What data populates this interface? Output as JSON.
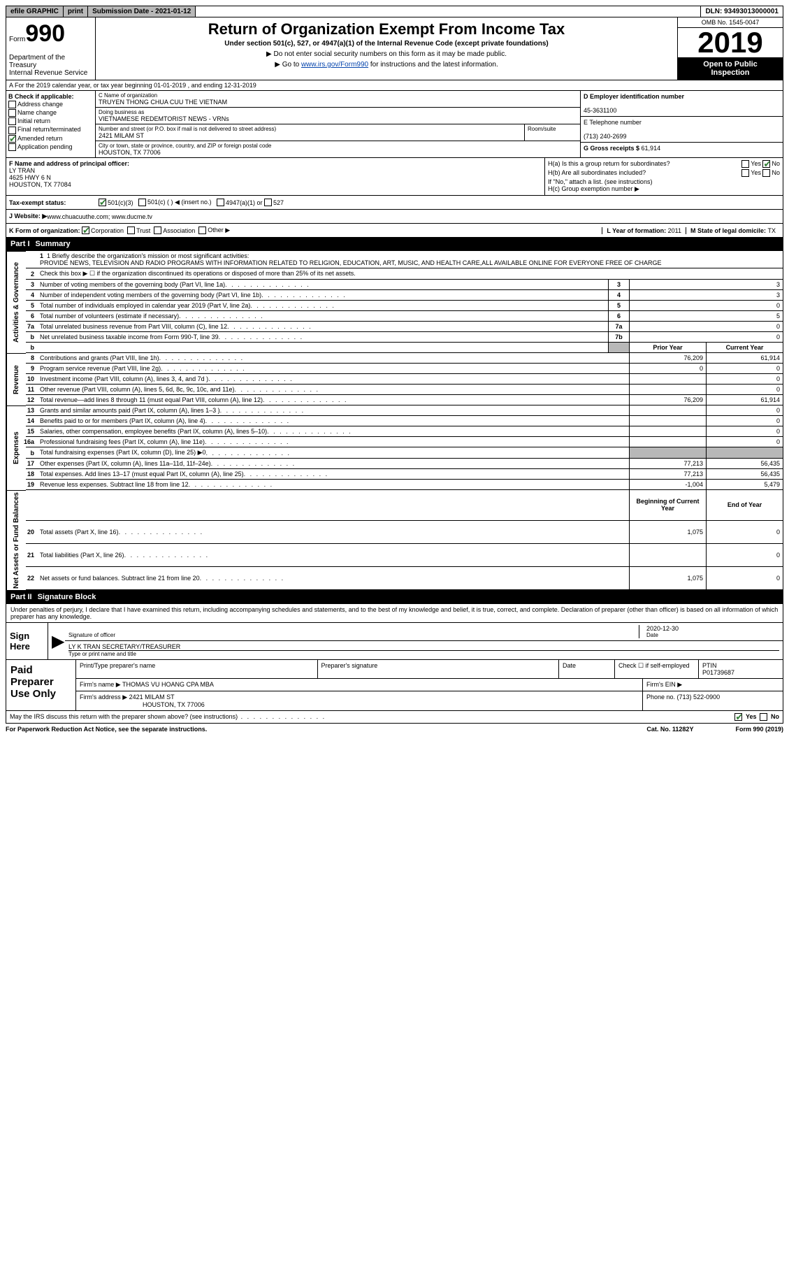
{
  "topbar": {
    "efile": "efile GRAPHIC",
    "print": "print",
    "subdate_label": "Submission Date - ",
    "subdate": "2021-01-12",
    "dln_label": "DLN: ",
    "dln": "93493013000001"
  },
  "header": {
    "form_word": "Form",
    "form_num": "990",
    "dept1": "Department of the Treasury",
    "dept2": "Internal Revenue Service",
    "title": "Return of Organization Exempt From Income Tax",
    "sub": "Under section 501(c), 527, or 4947(a)(1) of the Internal Revenue Code (except private foundations)",
    "note1": "▶ Do not enter social security numbers on this form as it may be made public.",
    "note2_pre": "▶ Go to ",
    "note2_link": "www.irs.gov/Form990",
    "note2_post": " for instructions and the latest information.",
    "omb": "OMB No. 1545-0047",
    "year": "2019",
    "inspect1": "Open to Public",
    "inspect2": "Inspection"
  },
  "rowA": "A For the 2019 calendar year, or tax year beginning 01-01-2019    , and ending 12-31-2019",
  "colB": {
    "hdr": "B Check if applicable:",
    "c1": "Address change",
    "c2": "Name change",
    "c3": "Initial return",
    "c4": "Final return/terminated",
    "c5": "Amended return",
    "c6": "Application pending"
  },
  "colC": {
    "name_lbl": "C Name of organization",
    "name": "TRUYEN THONG CHUA CUU THE VIETNAM",
    "dba_lbl": "Doing business as",
    "dba": "VIETNAMESE REDEMTORIST NEWS - VRNs",
    "addr_lbl": "Number and street (or P.O. box if mail is not delivered to street address)",
    "addr": "2421 MILAM ST",
    "room_lbl": "Room/suite",
    "city_lbl": "City or town, state or province, country, and ZIP or foreign postal code",
    "city": "HOUSTON, TX  77006"
  },
  "colD": {
    "lbl": "D Employer identification number",
    "val": "45-3631100"
  },
  "colE": {
    "lbl": "E Telephone number",
    "val": "(713) 240-2699"
  },
  "colG": {
    "lbl": "G Gross receipts $ ",
    "val": "61,914"
  },
  "colF": {
    "lbl": "F Name and address of principal officer:",
    "name": "LY TRAN",
    "addr1": "4625 HWY 6 N",
    "addr2": "HOUSTON, TX  77084"
  },
  "colH": {
    "ha": "H(a)  Is this a group return for subordinates?",
    "hb": "H(b)  Are all subordinates included?",
    "hb_note": "If \"No,\" attach a list. (see instructions)",
    "hc": "H(c)  Group exemption number ▶",
    "yes": "Yes",
    "no": "No"
  },
  "taxrow": {
    "lbl": "Tax-exempt status:",
    "o1": "501(c)(3)",
    "o2": "501(c) (  ) ◀ (insert no.)",
    "o3": "4947(a)(1) or",
    "o4": "527"
  },
  "webrow": {
    "lbl": "J   Website: ▶",
    "val": " www.chuacuuthe.com; www.ducme.tv"
  },
  "krow": {
    "lbl": "K Form of organization:",
    "o1": "Corporation",
    "o2": "Trust",
    "o3": "Association",
    "o4": "Other ▶",
    "l_lbl": "L Year of formation: ",
    "l_val": "2011",
    "m_lbl": "M State of legal domicile: ",
    "m_val": "TX"
  },
  "part1": {
    "hdr": "Part I",
    "title": "Summary",
    "side_act": "Activities & Governance",
    "side_rev": "Revenue",
    "side_exp": "Expenses",
    "side_net": "Net Assets or Fund Balances",
    "l1_lbl": "1   Briefly describe the organization's mission or most significant activities:",
    "l1_text": "PROVIDE NEWS, TELEVISION AND RADIO PROGRAMS WITH INFORMATION RELATED TO RELIGION, EDUCATION, ART, MUSIC, AND HEALTH CARE,ALL AVAILABLE ONLINE FOR EVERYONE FREE OF CHARGE",
    "l2": "Check this box ▶ ☐  if the organization discontinued its operations or disposed of more than 25% of its net assets.",
    "col_prior": "Prior Year",
    "col_curr": "Current Year",
    "col_beg": "Beginning of Current Year",
    "col_end": "End of Year",
    "rows_ag": [
      {
        "n": "3",
        "t": "Number of voting members of the governing body (Part VI, line 1a)",
        "b": "3",
        "v": "3"
      },
      {
        "n": "4",
        "t": "Number of independent voting members of the governing body (Part VI, line 1b)",
        "b": "4",
        "v": "3"
      },
      {
        "n": "5",
        "t": "Total number of individuals employed in calendar year 2019 (Part V, line 2a)",
        "b": "5",
        "v": "0"
      },
      {
        "n": "6",
        "t": "Total number of volunteers (estimate if necessary)",
        "b": "6",
        "v": "5"
      },
      {
        "n": "7a",
        "t": "Total unrelated business revenue from Part VIII, column (C), line 12",
        "b": "7a",
        "v": "0"
      },
      {
        "n": "b",
        "t": "Net unrelated business taxable income from Form 990-T, line 39",
        "b": "7b",
        "v": "0"
      }
    ],
    "rows_rev": [
      {
        "n": "8",
        "t": "Contributions and grants (Part VIII, line 1h)",
        "p": "76,209",
        "c": "61,914"
      },
      {
        "n": "9",
        "t": "Program service revenue (Part VIII, line 2g)",
        "p": "0",
        "c": "0"
      },
      {
        "n": "10",
        "t": "Investment income (Part VIII, column (A), lines 3, 4, and 7d )",
        "p": "",
        "c": "0"
      },
      {
        "n": "11",
        "t": "Other revenue (Part VIII, column (A), lines 5, 6d, 8c, 9c, 10c, and 11e)",
        "p": "",
        "c": "0"
      },
      {
        "n": "12",
        "t": "Total revenue—add lines 8 through 11 (must equal Part VIII, column (A), line 12)",
        "p": "76,209",
        "c": "61,914"
      }
    ],
    "rows_exp": [
      {
        "n": "13",
        "t": "Grants and similar amounts paid (Part IX, column (A), lines 1–3 )",
        "p": "",
        "c": "0"
      },
      {
        "n": "14",
        "t": "Benefits paid to or for members (Part IX, column (A), line 4)",
        "p": "",
        "c": "0"
      },
      {
        "n": "15",
        "t": "Salaries, other compensation, employee benefits (Part IX, column (A), lines 5–10)",
        "p": "",
        "c": "0"
      },
      {
        "n": "16a",
        "t": "Professional fundraising fees (Part IX, column (A), line 11e)",
        "p": "",
        "c": "0"
      },
      {
        "n": "b",
        "t": "Total fundraising expenses (Part IX, column (D), line 25) ▶0",
        "p": "SHADE",
        "c": "SHADE"
      },
      {
        "n": "17",
        "t": "Other expenses (Part IX, column (A), lines 11a–11d, 11f–24e)",
        "p": "77,213",
        "c": "56,435"
      },
      {
        "n": "18",
        "t": "Total expenses. Add lines 13–17 (must equal Part IX, column (A), line 25)",
        "p": "77,213",
        "c": "56,435"
      },
      {
        "n": "19",
        "t": "Revenue less expenses. Subtract line 18 from line 12",
        "p": "-1,004",
        "c": "5,479"
      }
    ],
    "rows_net": [
      {
        "n": "20",
        "t": "Total assets (Part X, line 16)",
        "p": "1,075",
        "c": "0"
      },
      {
        "n": "21",
        "t": "Total liabilities (Part X, line 26)",
        "p": "",
        "c": "0"
      },
      {
        "n": "22",
        "t": "Net assets or fund balances. Subtract line 21 from line 20",
        "p": "1,075",
        "c": "0"
      }
    ]
  },
  "part2": {
    "hdr": "Part II",
    "title": "Signature Block",
    "decl": "Under penalties of perjury, I declare that I have examined this return, including accompanying schedules and statements, and to the best of my knowledge and belief, it is true, correct, and complete. Declaration of preparer (other than officer) is based on all information of which preparer has any knowledge.",
    "sign_here": "Sign Here",
    "sig_lbl": "Signature of officer",
    "date_lbl": "Date",
    "date_val": "2020-12-30",
    "officer": "LY K TRAN  SECRETARY/TREASURER",
    "officer_lbl": "Type or print name and title",
    "paid": "Paid Preparer Use Only",
    "pp_name_lbl": "Print/Type preparer's name",
    "pp_sig_lbl": "Preparer's signature",
    "pp_date_lbl": "Date",
    "pp_chk": "Check ☐ if self-employed",
    "pp_ptin_lbl": "PTIN",
    "pp_ptin": "P01739687",
    "firm_name_lbl": "Firm's name    ▶ ",
    "firm_name": "THOMAS VU HOANG CPA MBA",
    "firm_ein_lbl": "Firm's EIN ▶",
    "firm_addr_lbl": "Firm's address ▶ ",
    "firm_addr1": "2421 MILAM ST",
    "firm_addr2": "HOUSTON, TX  77006",
    "firm_phone_lbl": "Phone no. ",
    "firm_phone": "(713) 522-0900",
    "discuss": "May the IRS discuss this return with the preparer shown above? (see instructions)",
    "yes": "Yes",
    "no": "No"
  },
  "footer": {
    "pra": "For Paperwork Reduction Act Notice, see the separate instructions.",
    "cat": "Cat. No. 11282Y",
    "form": "Form 990 (2019)"
  }
}
